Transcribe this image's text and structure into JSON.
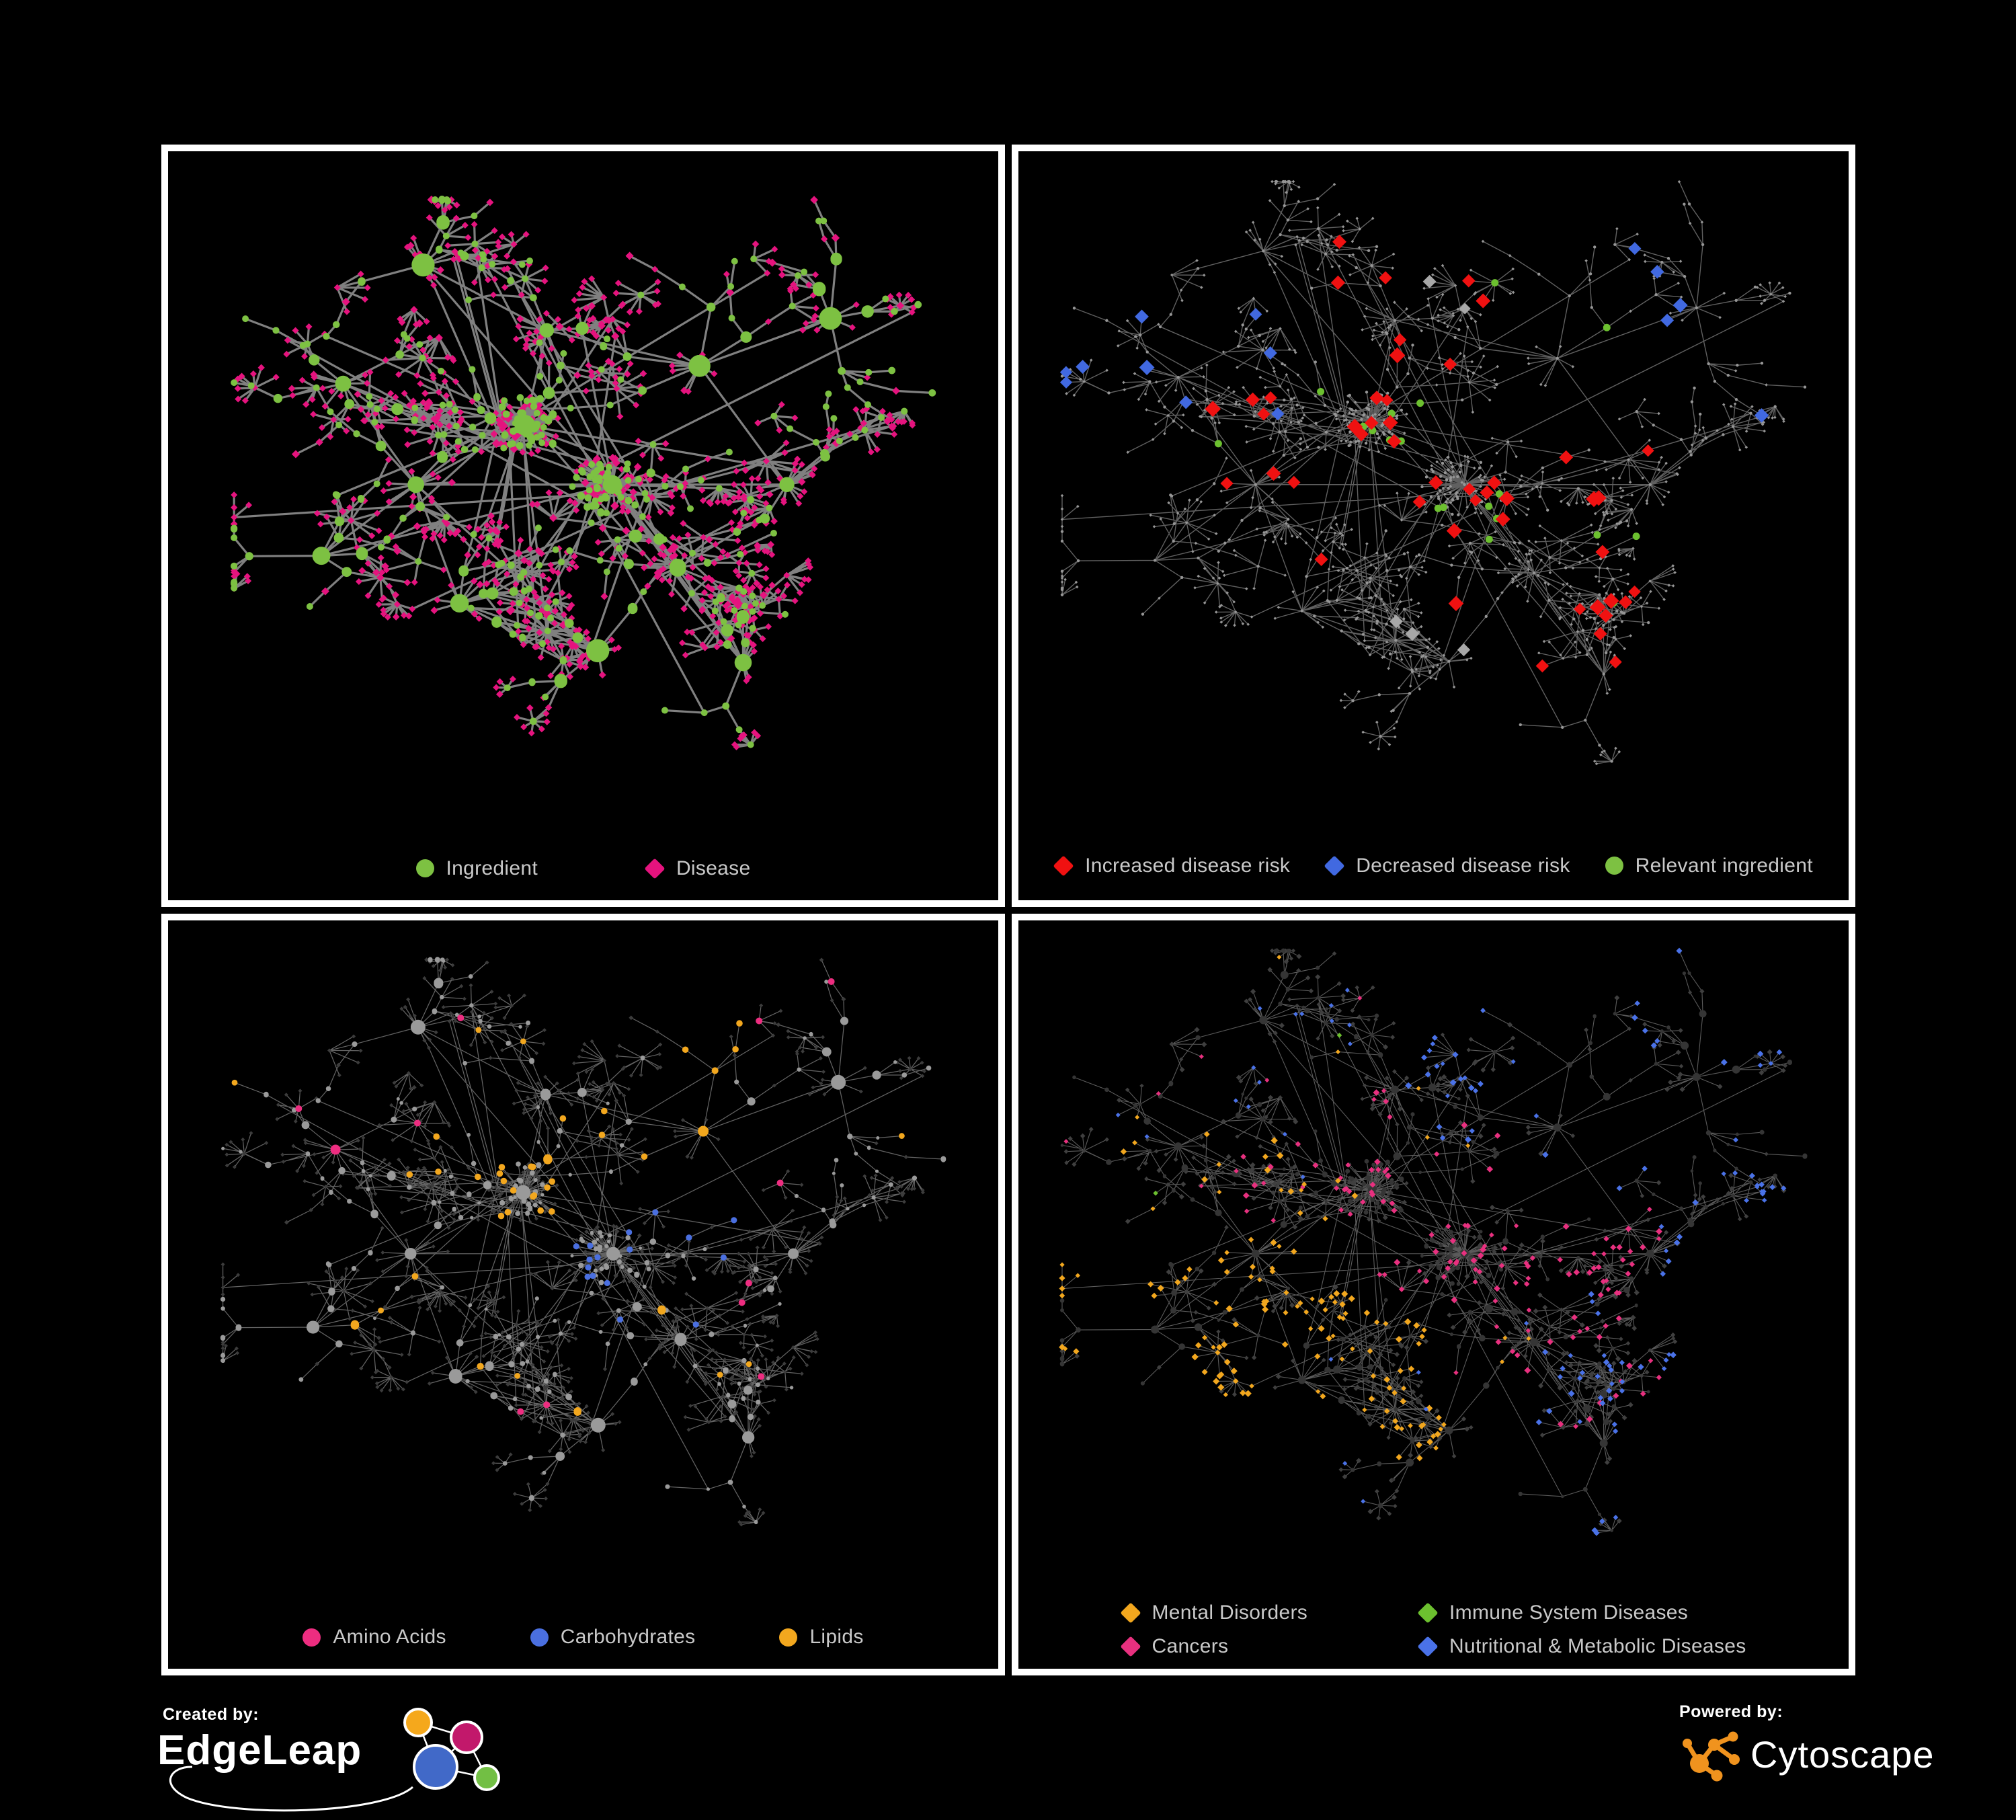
{
  "figure": {
    "background": "#000000",
    "panel_border": "#ffffff"
  },
  "panels": [
    {
      "name": "ingredient-disease-network",
      "legend": [
        {
          "shape": "circle",
          "color": "#7dc142",
          "label": "Ingredient"
        },
        {
          "shape": "diamond",
          "color": "#e5137e",
          "label": "Disease"
        }
      ],
      "style": {
        "mode": "roles",
        "seed": 101,
        "edge_color": "#878787",
        "edge_width": 3.2,
        "edge_opacity": 0.95,
        "scale_pos": 0.94,
        "circle_color": "#7dc142",
        "diamond_color": "#e5137e"
      }
    },
    {
      "name": "disease-risk-network",
      "legend": [
        {
          "shape": "diamond",
          "color": "#f01111",
          "label": "Increased disease risk"
        },
        {
          "shape": "diamond",
          "color": "#4169e1",
          "label": "Decreased disease risk"
        },
        {
          "shape": "circle",
          "color": "#7dc142",
          "label": "Relevant ingredient"
        }
      ],
      "style": {
        "mode": "highlight",
        "seed": 202,
        "edge_color": "#6a6a6a",
        "edge_width": 1.4,
        "edge_opacity": 0.9,
        "scale_pos": 1.0,
        "base_color": "#969696",
        "red": "#f01111",
        "blue": "#4169e1",
        "silver": "#a8a8a8",
        "green": "#6cc02f",
        "red_clusters": [
          0,
          1,
          2,
          3,
          9,
          12
        ],
        "blue_clusters": [
          8,
          1,
          10
        ],
        "green_clusters": [
          0,
          1,
          2,
          3,
          4,
          9
        ]
      }
    },
    {
      "name": "nutrient-class-network",
      "legend": [
        {
          "shape": "circle",
          "color": "#ed2d80",
          "label": "Amino Acids"
        },
        {
          "shape": "circle",
          "color": "#4a6fe0",
          "label": "Carbohydrates"
        },
        {
          "shape": "circle",
          "color": "#f2a71e",
          "label": "Lipids"
        }
      ],
      "style": {
        "mode": "nutrients",
        "seed": 303,
        "edge_color": "#7c7c7c",
        "edge_width": 1.25,
        "edge_opacity": 0.8,
        "scale_pos": 0.97,
        "gray_circle": "#9a9a9a",
        "dark_diamond": "#3c3c3c",
        "yellow": "#f2a71e",
        "blue": "#4a6fe0",
        "pink": "#ed2d80",
        "yellow_clusters": [
          4,
          0
        ],
        "blue_clusters": [
          0,
          2
        ]
      }
    },
    {
      "name": "disease-category-network",
      "legend": [
        {
          "shape": "diamond",
          "color": "#f2a71e",
          "label": "Mental Disorders"
        },
        {
          "shape": "diamond",
          "color": "#6cc02f",
          "label": "Immune System Diseases"
        },
        {
          "shape": "diamond",
          "color": "#e8307f",
          "label": "Cancers"
        },
        {
          "shape": "diamond",
          "color": "#4a72e8",
          "label": "Nutritional & Metabolic Diseases"
        }
      ],
      "style": {
        "mode": "categories",
        "seed": 404,
        "edge_color": "#7e7e7e",
        "edge_width": 1.1,
        "edge_opacity": 0.72,
        "scale_pos": 1.0,
        "dark_diamond": "#3f3f3f",
        "dim_circle": "#353535",
        "orange": "#f2a71e",
        "pink": "#e8307f",
        "blue": "#4a72e8",
        "green": "#6cc02f",
        "orange_clusters": [
          1,
          13,
          6
        ],
        "pink_clusters": [
          0,
          2,
          9
        ],
        "blue_clusters": [
          4,
          5,
          10,
          12
        ]
      }
    }
  ],
  "network": {
    "seed": 20,
    "cluster_centers": [
      [
        0.42,
        0.4
      ],
      [
        0.27,
        0.5
      ],
      [
        0.54,
        0.5
      ],
      [
        0.45,
        0.24
      ],
      [
        0.66,
        0.3
      ],
      [
        0.78,
        0.5
      ],
      [
        0.33,
        0.7
      ],
      [
        0.52,
        0.78
      ],
      [
        0.17,
        0.33
      ],
      [
        0.63,
        0.64
      ],
      [
        0.84,
        0.22
      ],
      [
        0.28,
        0.13
      ],
      [
        0.72,
        0.8
      ],
      [
        0.14,
        0.62
      ]
    ],
    "core_clusters": [
      0,
      2
    ],
    "core_fuzz": 85,
    "cross_links": 70
  },
  "footer": {
    "created_by": {
      "label": "Created by:",
      "brand": "EdgeLeap",
      "stroke": "#ffffff",
      "colors": {
        "orange": "#f5a81c",
        "magenta": "#c2186b",
        "blue": "#4169c8",
        "green": "#72bf44"
      }
    },
    "powered_by": {
      "label": "Powered by:",
      "brand": "Cytoscape",
      "icon_color": "#f0931e"
    }
  }
}
